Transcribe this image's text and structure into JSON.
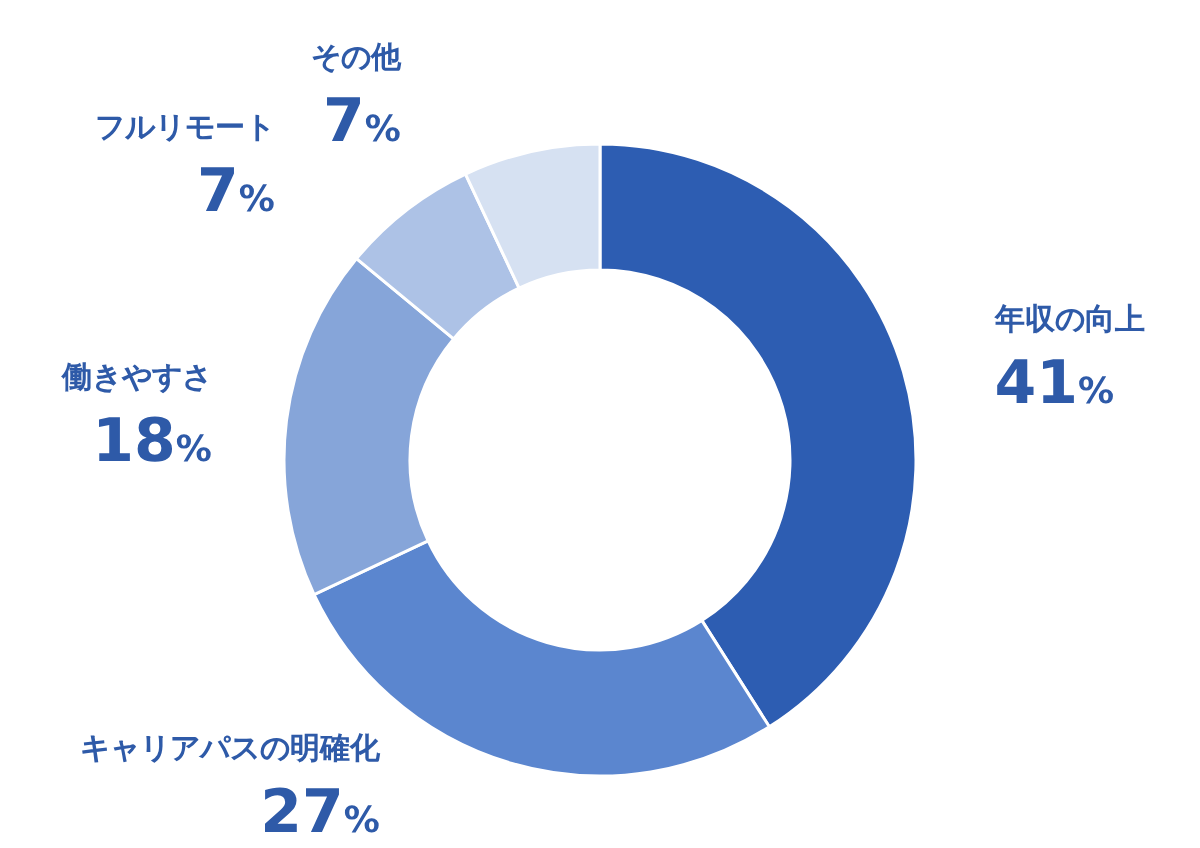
{
  "chart_data": {
    "type": "donut",
    "categories": [
      "年収の向上",
      "キャリアパスの明確化",
      "働きやすさ",
      "フルリモート",
      "その他"
    ],
    "values": [
      41,
      27,
      18,
      7,
      7
    ],
    "value_labels": [
      "41%",
      "27%",
      "18%",
      "7%",
      "7%"
    ],
    "colors": [
      "#2d5db2",
      "#5b86cf",
      "#86a5d9",
      "#adc2e6",
      "#d6e1f2"
    ]
  }
}
